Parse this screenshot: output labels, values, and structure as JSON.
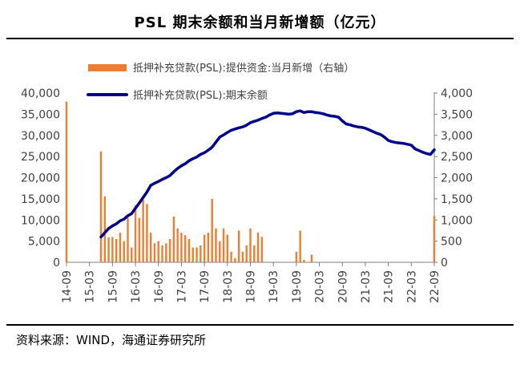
{
  "page": {
    "title": "PSL 期末余额和当月新增额（亿元）",
    "source": "资料来源：WIND，海通证券研究所"
  },
  "colors": {
    "bar": "#ed7d31",
    "line": "#00008b",
    "axis": "#7f7f7f",
    "text": "#404040"
  },
  "chart_data": {
    "type": "bar+line",
    "title": "PSL 期末余额和当月新增额（亿元）",
    "legend": {
      "position": "top",
      "entries": [
        {
          "label": "抵押补充贷款(PSL):提供资金:当月新增（右轴）",
          "kind": "bar"
        },
        {
          "label": "抵押补充贷款(PSL):期末余额",
          "kind": "line"
        }
      ]
    },
    "left_axis": {
      "min": 0,
      "max": 40000,
      "ticks": [
        0,
        5000,
        10000,
        15000,
        20000,
        25000,
        30000,
        35000,
        40000
      ],
      "tick_labels": [
        "0",
        "5,000",
        "10,000",
        "15,000",
        "20,000",
        "25,000",
        "30,000",
        "35,000",
        "40,000"
      ]
    },
    "right_axis": {
      "min": 0,
      "max": 4000,
      "ticks": [
        0,
        500,
        1000,
        1500,
        2000,
        2500,
        3000,
        3500,
        4000
      ],
      "tick_labels": [
        "0",
        "500",
        "1,000",
        "1,500",
        "2,000",
        "2,500",
        "3,000",
        "3,500",
        "4,000"
      ]
    },
    "x_axis": {
      "start": "2014-09",
      "end": "2022-09",
      "tick_labels": [
        "14-09",
        "15-03",
        "15-09",
        "16-03",
        "16-09",
        "17-03",
        "17-09",
        "18-03",
        "18-09",
        "19-03",
        "19-09",
        "20-03",
        "20-09",
        "21-03",
        "21-09",
        "22-03",
        "22-09"
      ]
    },
    "series": [
      {
        "name": "抵押补充贷款(PSL):提供资金:当月新增（右轴）",
        "type": "bar",
        "axis": "right",
        "x": [
          "2014-09",
          "2015-06",
          "2015-07",
          "2015-08",
          "2015-09",
          "2015-10",
          "2015-11",
          "2015-12",
          "2016-01",
          "2016-02",
          "2016-03",
          "2016-04",
          "2016-05",
          "2016-06",
          "2016-07",
          "2016-08",
          "2016-09",
          "2016-10",
          "2016-11",
          "2016-12",
          "2017-01",
          "2017-02",
          "2017-03",
          "2017-04",
          "2017-05",
          "2017-06",
          "2017-07",
          "2017-08",
          "2017-09",
          "2017-10",
          "2017-11",
          "2017-12",
          "2018-01",
          "2018-02",
          "2018-03",
          "2018-04",
          "2018-05",
          "2018-06",
          "2018-07",
          "2018-08",
          "2018-09",
          "2018-10",
          "2018-11",
          "2018-12",
          "2019-01",
          "2019-02",
          "2019-03",
          "2019-04",
          "2019-09",
          "2019-10",
          "2019-11",
          "2020-01",
          "2022-09"
        ],
        "values": [
          3800,
          2620,
          1560,
          590,
          600,
          550,
          700,
          500,
          1050,
          350,
          1350,
          1050,
          1480,
          1380,
          700,
          450,
          500,
          400,
          450,
          550,
          1080,
          800,
          700,
          640,
          550,
          350,
          350,
          400,
          650,
          700,
          1500,
          800,
          500,
          800,
          650,
          250,
          100,
          750,
          250,
          400,
          800,
          400,
          700,
          600,
          0,
          0,
          0,
          0,
          250,
          750,
          60,
          180,
          1100
        ]
      },
      {
        "name": "抵押补充贷款(PSL):期末余额",
        "type": "line",
        "axis": "left",
        "x": [
          "2015-06",
          "2015-07",
          "2015-08",
          "2015-09",
          "2015-10",
          "2015-11",
          "2015-12",
          "2016-01",
          "2016-02",
          "2016-03",
          "2016-04",
          "2016-05",
          "2016-06",
          "2016-07",
          "2016-08",
          "2016-09",
          "2016-10",
          "2016-11",
          "2016-12",
          "2017-01",
          "2017-02",
          "2017-03",
          "2017-04",
          "2017-05",
          "2017-06",
          "2017-07",
          "2017-08",
          "2017-09",
          "2017-10",
          "2017-11",
          "2017-12",
          "2018-01",
          "2018-02",
          "2018-03",
          "2018-04",
          "2018-05",
          "2018-06",
          "2018-07",
          "2018-08",
          "2018-09",
          "2018-10",
          "2018-11",
          "2018-12",
          "2019-01",
          "2019-02",
          "2019-03",
          "2019-04",
          "2019-05",
          "2019-06",
          "2019-07",
          "2019-08",
          "2019-09",
          "2019-10",
          "2019-11",
          "2019-12",
          "2020-01",
          "2020-02",
          "2020-03",
          "2020-04",
          "2020-05",
          "2020-06",
          "2020-07",
          "2020-08",
          "2020-09",
          "2020-10",
          "2020-11",
          "2020-12",
          "2021-01",
          "2021-02",
          "2021-03",
          "2021-04",
          "2021-05",
          "2021-06",
          "2021-07",
          "2021-08",
          "2021-09",
          "2021-10",
          "2021-11",
          "2021-12",
          "2022-01",
          "2022-02",
          "2022-03",
          "2022-04",
          "2022-05",
          "2022-06",
          "2022-07",
          "2022-08",
          "2022-09"
        ],
        "values": [
          6000,
          7000,
          8000,
          8600,
          9100,
          9800,
          10200,
          11000,
          11500,
          12800,
          14000,
          15300,
          16600,
          18200,
          18700,
          19100,
          19600,
          20000,
          20500,
          21400,
          22200,
          22800,
          23300,
          24000,
          24500,
          24900,
          25500,
          25900,
          26500,
          27200,
          28400,
          29600,
          30100,
          30700,
          31200,
          31500,
          31800,
          32000,
          32400,
          33000,
          33300,
          33600,
          34000,
          34300,
          34800,
          35200,
          35300,
          35200,
          35100,
          35000,
          35100,
          35600,
          35800,
          35400,
          35600,
          35600,
          35400,
          35300,
          35100,
          34800,
          34600,
          34500,
          34300,
          33400,
          32700,
          32500,
          32200,
          32000,
          31900,
          31700,
          31300,
          30900,
          30500,
          30200,
          29600,
          28800,
          28500,
          28300,
          28200,
          28100,
          27900,
          27700,
          26800,
          26400,
          26000,
          25700,
          25500,
          26600
        ]
      }
    ]
  }
}
